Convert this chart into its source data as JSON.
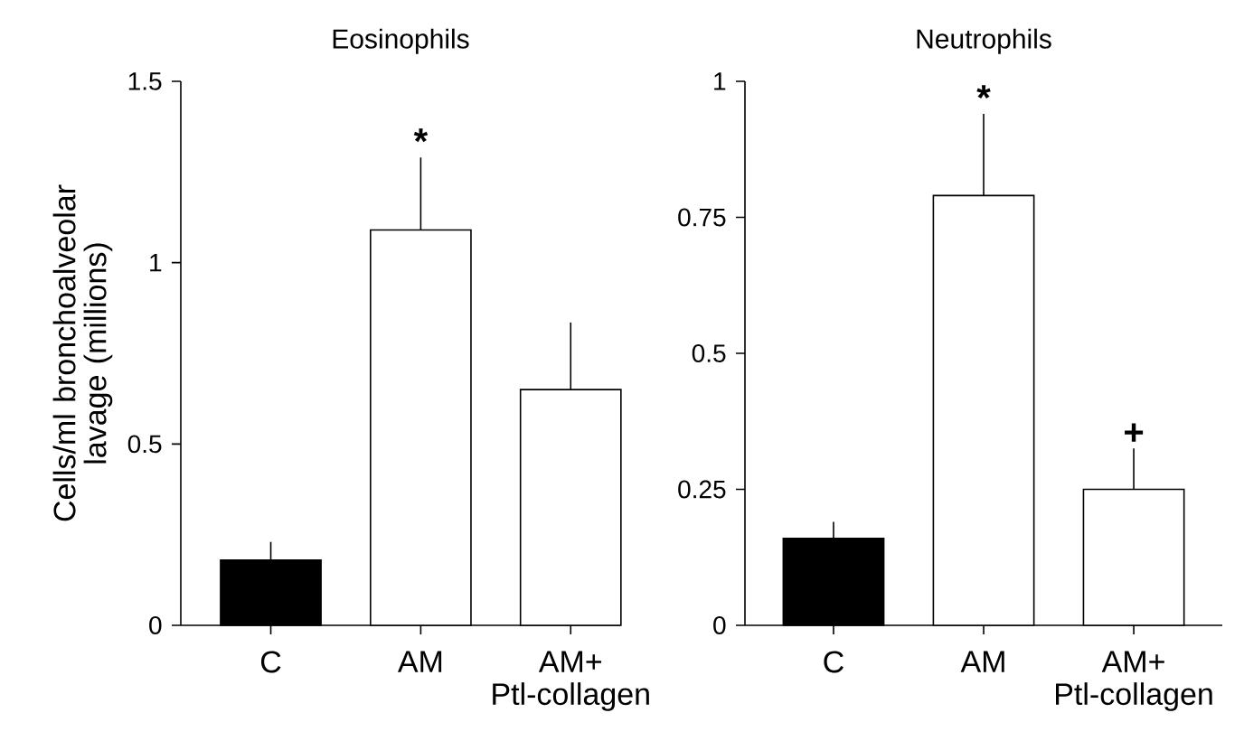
{
  "chart_data": [
    {
      "type": "bar",
      "title": "Eosinophils",
      "ylabel": "Cells/ml bronchoalveolar lavage (millions)",
      "categories": [
        "C",
        "AM",
        "AM+ Ptl-collagen"
      ],
      "values": [
        0.18,
        1.09,
        0.65
      ],
      "errors": [
        [
          0.18,
          0.23
        ],
        [
          1.09,
          1.29
        ],
        [
          0.65,
          0.835
        ]
      ],
      "colors": [
        "#000000",
        "#ffffff",
        "#ffffff"
      ],
      "ylim": [
        0,
        1.5
      ],
      "yticks": [
        0,
        0.5,
        1,
        1.5
      ],
      "annotations": [
        {
          "text": "*",
          "x": "AM",
          "y": 1.29
        }
      ]
    },
    {
      "type": "bar",
      "title": "Neutrophils",
      "categories": [
        "C",
        "AM",
        "AM+ Ptl-collagen"
      ],
      "values": [
        0.16,
        0.79,
        0.25
      ],
      "errors": [
        [
          0.16,
          0.19
        ],
        [
          0.79,
          0.94
        ],
        [
          0.25,
          0.325
        ]
      ],
      "colors": [
        "#000000",
        "#ffffff",
        "#ffffff"
      ],
      "ylim": [
        0,
        1
      ],
      "yticks": [
        0,
        0.25,
        0.5,
        0.75,
        1
      ],
      "annotations": [
        {
          "text": "*",
          "x": "AM",
          "y": 0.94
        },
        {
          "text": "+",
          "x": "AM+ Ptl-collagen",
          "y": 0.325
        }
      ]
    }
  ]
}
